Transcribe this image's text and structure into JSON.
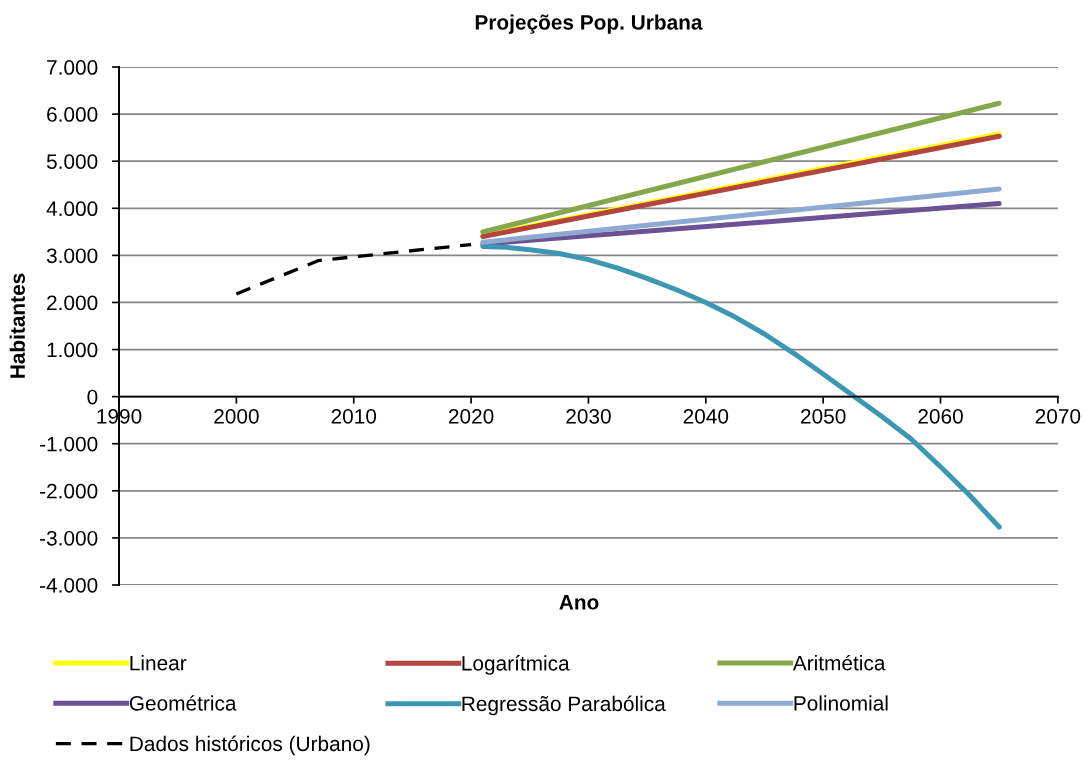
{
  "chart_data": {
    "type": "line",
    "title": "Projeções Pop. Urbana",
    "xlabel": "Ano",
    "ylabel": "Habitantes",
    "xlim": [
      1990,
      2070
    ],
    "xticks": [
      1990,
      2000,
      2010,
      2020,
      2030,
      2040,
      2050,
      2060,
      2070
    ],
    "ylim": [
      -4000,
      7000
    ],
    "yticks": [
      {
        "value": -4000,
        "label": "-4.000"
      },
      {
        "value": -3000,
        "label": "-3.000"
      },
      {
        "value": -2000,
        "label": "-2.000"
      },
      {
        "value": -1000,
        "label": "-1.000"
      },
      {
        "value": 0,
        "label": "0"
      },
      {
        "value": 1000,
        "label": "1.000"
      },
      {
        "value": 2000,
        "label": "2.000"
      },
      {
        "value": 3000,
        "label": "3.000"
      },
      {
        "value": 4000,
        "label": "4.000"
      },
      {
        "value": 5000,
        "label": "5.000"
      },
      {
        "value": 6000,
        "label": "6.000"
      },
      {
        "value": 7000,
        "label": "7.000"
      }
    ],
    "grid": "y",
    "legend": "bottom",
    "series": [
      {
        "name": "Linear",
        "color": "#ffff00",
        "x": [
          2021,
          2065
        ],
        "values": [
          3420,
          5580
        ]
      },
      {
        "name": "Logarítmica",
        "color": "#b3443f",
        "x": [
          2021,
          2065
        ],
        "values": [
          3400,
          5530
        ]
      },
      {
        "name": "Aritmética",
        "color": "#86a84a",
        "x": [
          2021,
          2065
        ],
        "values": [
          3500,
          6230
        ]
      },
      {
        "name": "Geométrica",
        "color": "#6c5295",
        "x": [
          2021,
          2065
        ],
        "values": [
          3240,
          4100
        ]
      },
      {
        "name": "Regressão Parabólica",
        "color": "#3c97b2",
        "x": [
          2021,
          2023,
          2025,
          2027.5,
          2030,
          2032.5,
          2035,
          2037.5,
          2040,
          2042.5,
          2045,
          2047.5,
          2050,
          2052.5,
          2055,
          2057.5,
          2060,
          2062.5,
          2065
        ],
        "values": [
          3190,
          3170,
          3120,
          3040,
          2910,
          2730,
          2510,
          2270,
          2000,
          1690,
          1330,
          920,
          480,
          30,
          -420,
          -900,
          -1490,
          -2100,
          -2770
        ]
      },
      {
        "name": "Polinomial",
        "color": "#8ea9d2",
        "x": [
          2021,
          2065
        ],
        "values": [
          3280,
          4410
        ]
      },
      {
        "name": "Dados históricos (Urbano)",
        "color": "#000000",
        "line_style": "dashed",
        "x": [
          2000,
          2007,
          2010,
          2020
        ],
        "values": [
          2180,
          2890,
          2970,
          3230
        ]
      }
    ]
  }
}
